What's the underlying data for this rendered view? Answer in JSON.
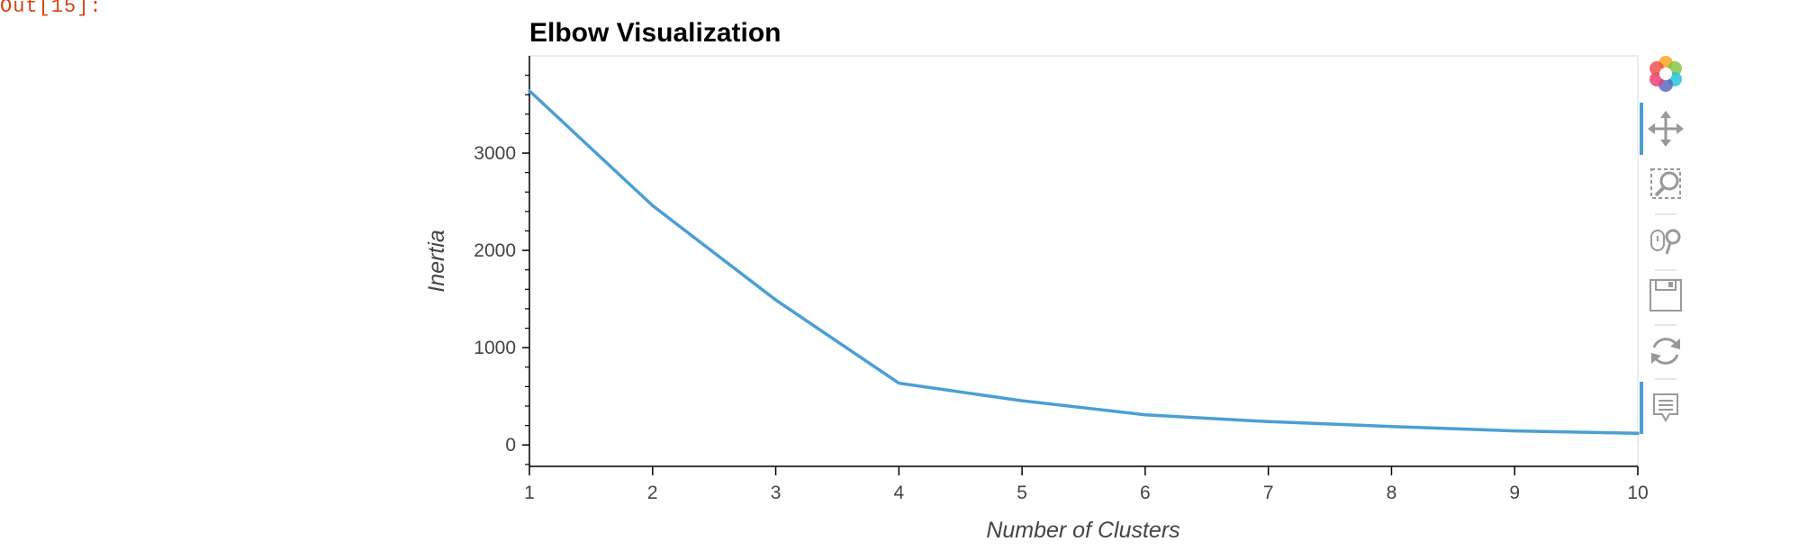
{
  "cell": {
    "prompt": "Out[15]:"
  },
  "chart_data": {
    "type": "line",
    "title": "Elbow Visualization",
    "xlabel": "Number of Clusters",
    "ylabel": "Inertia",
    "x": [
      1,
      2,
      3,
      4,
      5,
      6,
      7,
      8,
      9,
      10
    ],
    "series": [
      {
        "values": [
          3640,
          2460,
          1490,
          635,
          455,
          310,
          240,
          190,
          145,
          120
        ],
        "color": "#4a9fd4"
      }
    ],
    "xlim": [
      1,
      10
    ],
    "ylim": [
      -220,
      4000
    ],
    "xticks": [
      "1",
      "2",
      "3",
      "4",
      "5",
      "6",
      "7",
      "8",
      "9",
      "10"
    ],
    "yticks": [
      "0",
      "1000",
      "2000",
      "3000"
    ],
    "grid": false,
    "legend": "none"
  },
  "toolbar": {
    "items": [
      {
        "name": "bokeh-logo-icon",
        "active": false
      },
      {
        "name": "pan-icon",
        "active": true
      },
      {
        "name": "box-zoom-icon",
        "active": false
      },
      {
        "name": "wheel-zoom-icon",
        "active": false
      },
      {
        "name": "save-icon",
        "active": false
      },
      {
        "name": "reset-icon",
        "active": false
      },
      {
        "name": "hover-icon",
        "active": true
      }
    ],
    "active_color": "#26aae1"
  }
}
